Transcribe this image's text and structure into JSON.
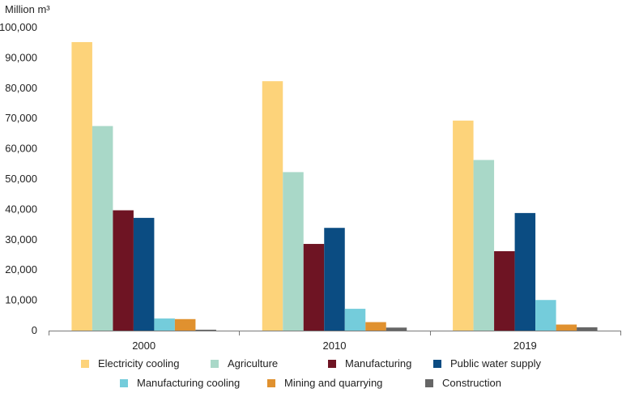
{
  "chart_data": {
    "type": "bar",
    "unit_label": "Million m³",
    "categories": [
      "2000",
      "2010",
      "2019"
    ],
    "ylim": [
      0,
      100000
    ],
    "y_ticks": [
      0,
      10000,
      20000,
      30000,
      40000,
      50000,
      60000,
      70000,
      80000,
      90000,
      100000
    ],
    "y_tick_labels": [
      "0",
      "10,000",
      "20,000",
      "30,000",
      "40,000",
      "50,000",
      "60,000",
      "70,000",
      "80,000",
      "90,000",
      "100,000"
    ],
    "grid": false,
    "legend_position": "bottom",
    "series": [
      {
        "name": "Electricity cooling",
        "color": "#FDD37A",
        "values": [
          95200,
          82300,
          69300
        ]
      },
      {
        "name": "Agriculture",
        "color": "#A9D8C8",
        "values": [
          67500,
          52300,
          56300
        ]
      },
      {
        "name": "Manufacturing",
        "color": "#6E1423",
        "values": [
          39700,
          28600,
          26200
        ]
      },
      {
        "name": "Public water supply",
        "color": "#0B4C82",
        "values": [
          37200,
          33900,
          38800
        ]
      },
      {
        "name": "Manufacturing cooling",
        "color": "#74CCDB",
        "values": [
          4000,
          7200,
          10100
        ]
      },
      {
        "name": "Mining and quarrying",
        "color": "#E0912F",
        "values": [
          3800,
          2800,
          2000
        ]
      },
      {
        "name": "Construction",
        "color": "#666666",
        "values": [
          300,
          1000,
          1100
        ]
      }
    ]
  }
}
